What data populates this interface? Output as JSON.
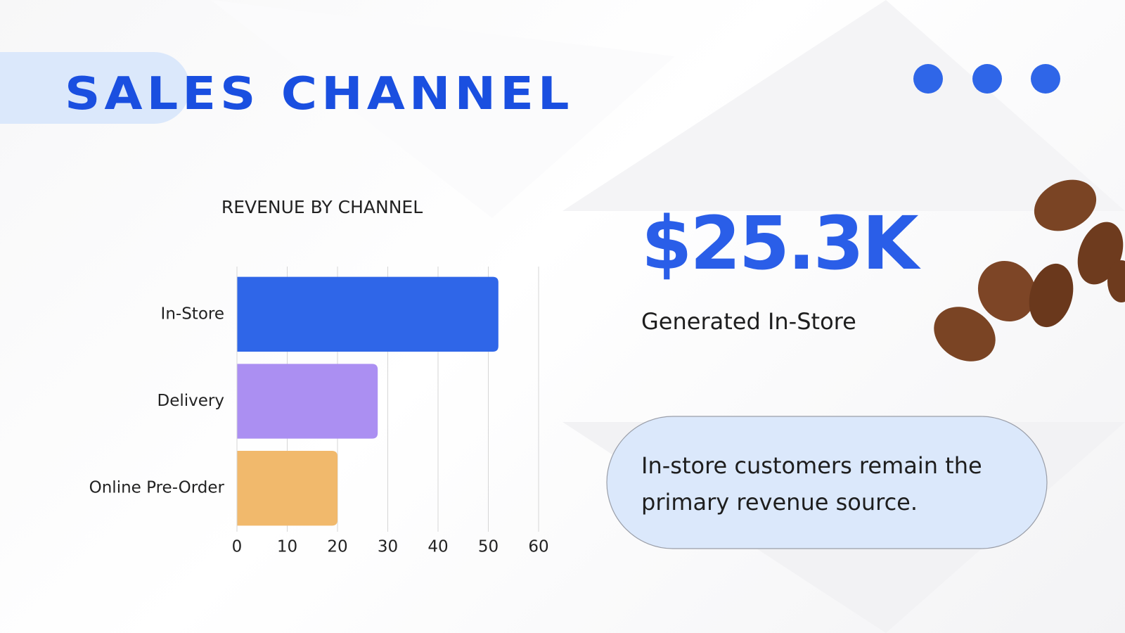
{
  "header": {
    "title": "SALES CHANNEL"
  },
  "chart_data": {
    "type": "bar",
    "orientation": "horizontal",
    "title": "REVENUE BY CHANNEL",
    "categories": [
      "In-Store",
      "Delivery",
      "Online Pre-Order"
    ],
    "values": [
      52,
      28,
      20
    ],
    "colors": [
      "#2f66e8",
      "#ab8ff2",
      "#f1b96c"
    ],
    "xlim": [
      0,
      60
    ],
    "xticks": [
      0,
      10,
      20,
      30,
      40,
      50,
      60
    ],
    "grid": true
  },
  "stat": {
    "value": "$25.3K",
    "label": "Generated In-Store"
  },
  "note": {
    "text": "In-store customers remain the primary revenue source."
  }
}
